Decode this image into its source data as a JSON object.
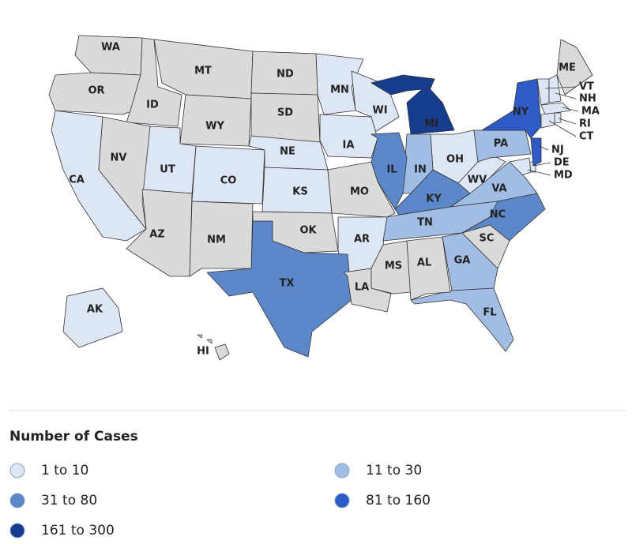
{
  "legend": {
    "title": "Number of Cases",
    "items": [
      {
        "label": "1 to 10",
        "color": "#dce6f5",
        "states": [
          "CA",
          "UT",
          "CO",
          "NE",
          "KS",
          "MN",
          "WI",
          "IA",
          "OH",
          "WV",
          "AR",
          "VT",
          "NH",
          "MA",
          "RI",
          "CT",
          "DE",
          "MD",
          "AK"
        ]
      },
      {
        "label": "11 to 30",
        "color": "#a1bde3",
        "states": [
          "PA",
          "IN",
          "VA",
          "TN",
          "GA",
          "FL"
        ]
      },
      {
        "label": "31 to 80",
        "color": "#5c88c9",
        "states": [
          "IL",
          "KY",
          "TX",
          "NC"
        ]
      },
      {
        "label": "81 to 160",
        "color": "#2e5bc5",
        "states": [
          "NY",
          "NJ"
        ]
      },
      {
        "label": "161 to 300",
        "color": "#163c8e",
        "states": [
          "MI"
        ]
      }
    ]
  },
  "map": {
    "other_color": "#dadada",
    "other_states": [
      "WA",
      "OR",
      "ID",
      "MT",
      "WY",
      "ND",
      "SD",
      "NV",
      "AZ",
      "NM",
      "OK",
      "MO",
      "LA",
      "MS",
      "AL",
      "SC",
      "ME",
      "HI"
    ]
  }
}
